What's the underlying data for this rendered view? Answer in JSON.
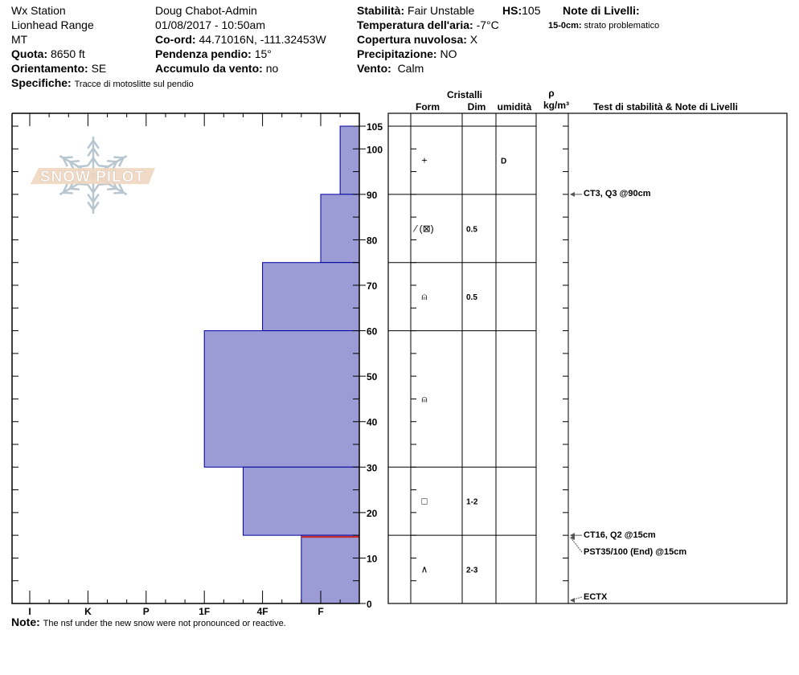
{
  "header": {
    "station": "Wx Station",
    "range": "Lionhead Range",
    "state": "MT",
    "elevation_label": "Quota:",
    "elevation": "8650 ft",
    "aspect_label": "Orientamento:",
    "aspect": "SE",
    "specifics_label": "Specifiche:",
    "specifics": "Tracce di motoslitte sul pendio",
    "observer": "Doug Chabot-Admin",
    "datetime": "01/08/2017 - 10:50am",
    "coord_label": "Co-ord:",
    "coord": "44.71016N, -111.32453W",
    "slope_label": "Pendenza pendio:",
    "slope": "15°",
    "wind_loading_label": "Accumulo da vento:",
    "wind_loading": "no",
    "stability_label": "Stabilità:",
    "stability": "Fair Unstable",
    "hs_label": "HS:",
    "hs": "105",
    "air_temp_label": "Temperatura dell'aria:",
    "air_temp": "-7°C",
    "sky_label": "Copertura nuvolosa:",
    "sky": "X",
    "precip_label": "Precipitazione:",
    "precip": "NO",
    "wind_label": "Vento:",
    "wind": "Calm",
    "layer_notes_label": "Note di Livelli:",
    "layer_note_range": "15-0cm:",
    "layer_note_text": "strato problematico"
  },
  "table_header": {
    "crystals": "Cristalli",
    "form": "Form",
    "size": "Dim",
    "moisture": "umidità",
    "rho": "ρ",
    "density_unit": "kg/m³",
    "tests": "Test di stabilità & Note di Livelli"
  },
  "note_label": "Note:",
  "note": "The nsf under the new snow were not pronounced or reactive.",
  "logo_text": "SNOW PILOT",
  "colors": {
    "bar_fill": "#9b9bd5",
    "bar_stroke": "#0000a0",
    "problem_layer": "#cc2222",
    "logo_banner": "#f0d6c0",
    "logo_flake": "#b8c6d0"
  },
  "chart_data": {
    "type": "bar",
    "orientation": "horizontal-step",
    "x_axis": {
      "ticks": [
        "I",
        "K",
        "P",
        "1F",
        "4F",
        "F"
      ],
      "label": ""
    },
    "y_axis": {
      "range": [
        0,
        105
      ],
      "ticks": [
        0,
        10,
        20,
        30,
        40,
        50,
        60,
        70,
        80,
        90,
        100,
        105
      ],
      "unit": "cm"
    },
    "layers": [
      {
        "top": 105,
        "bottom": 90,
        "hardness": "F-",
        "form": "+",
        "size": "",
        "moisture": "D"
      },
      {
        "top": 90,
        "bottom": 75,
        "hardness": "F",
        "form": "⁄ (⊠)",
        "size": "0.5",
        "moisture": ""
      },
      {
        "top": 75,
        "bottom": 60,
        "hardness": "4F",
        "form": "⍝",
        "size": "0.5",
        "moisture": ""
      },
      {
        "top": 60,
        "bottom": 30,
        "hardness": "1F",
        "form": "⍝",
        "size": "",
        "moisture": ""
      },
      {
        "top": 30,
        "bottom": 15,
        "hardness": "4F+",
        "form": "□",
        "size": "1-2",
        "moisture": ""
      },
      {
        "top": 15,
        "bottom": 0,
        "hardness": "F+",
        "form": "∧",
        "size": "2-3",
        "moisture": ""
      }
    ],
    "problem_layer_depth": 15,
    "tests": [
      {
        "depth": 90,
        "text": "CT3, Q3 @90cm"
      },
      {
        "depth": 15,
        "text": "CT16, Q2 @15cm"
      },
      {
        "depth": 15,
        "text": "PST35/100 (End) @15cm"
      },
      {
        "depth": 0,
        "text": "ECTX"
      }
    ]
  }
}
